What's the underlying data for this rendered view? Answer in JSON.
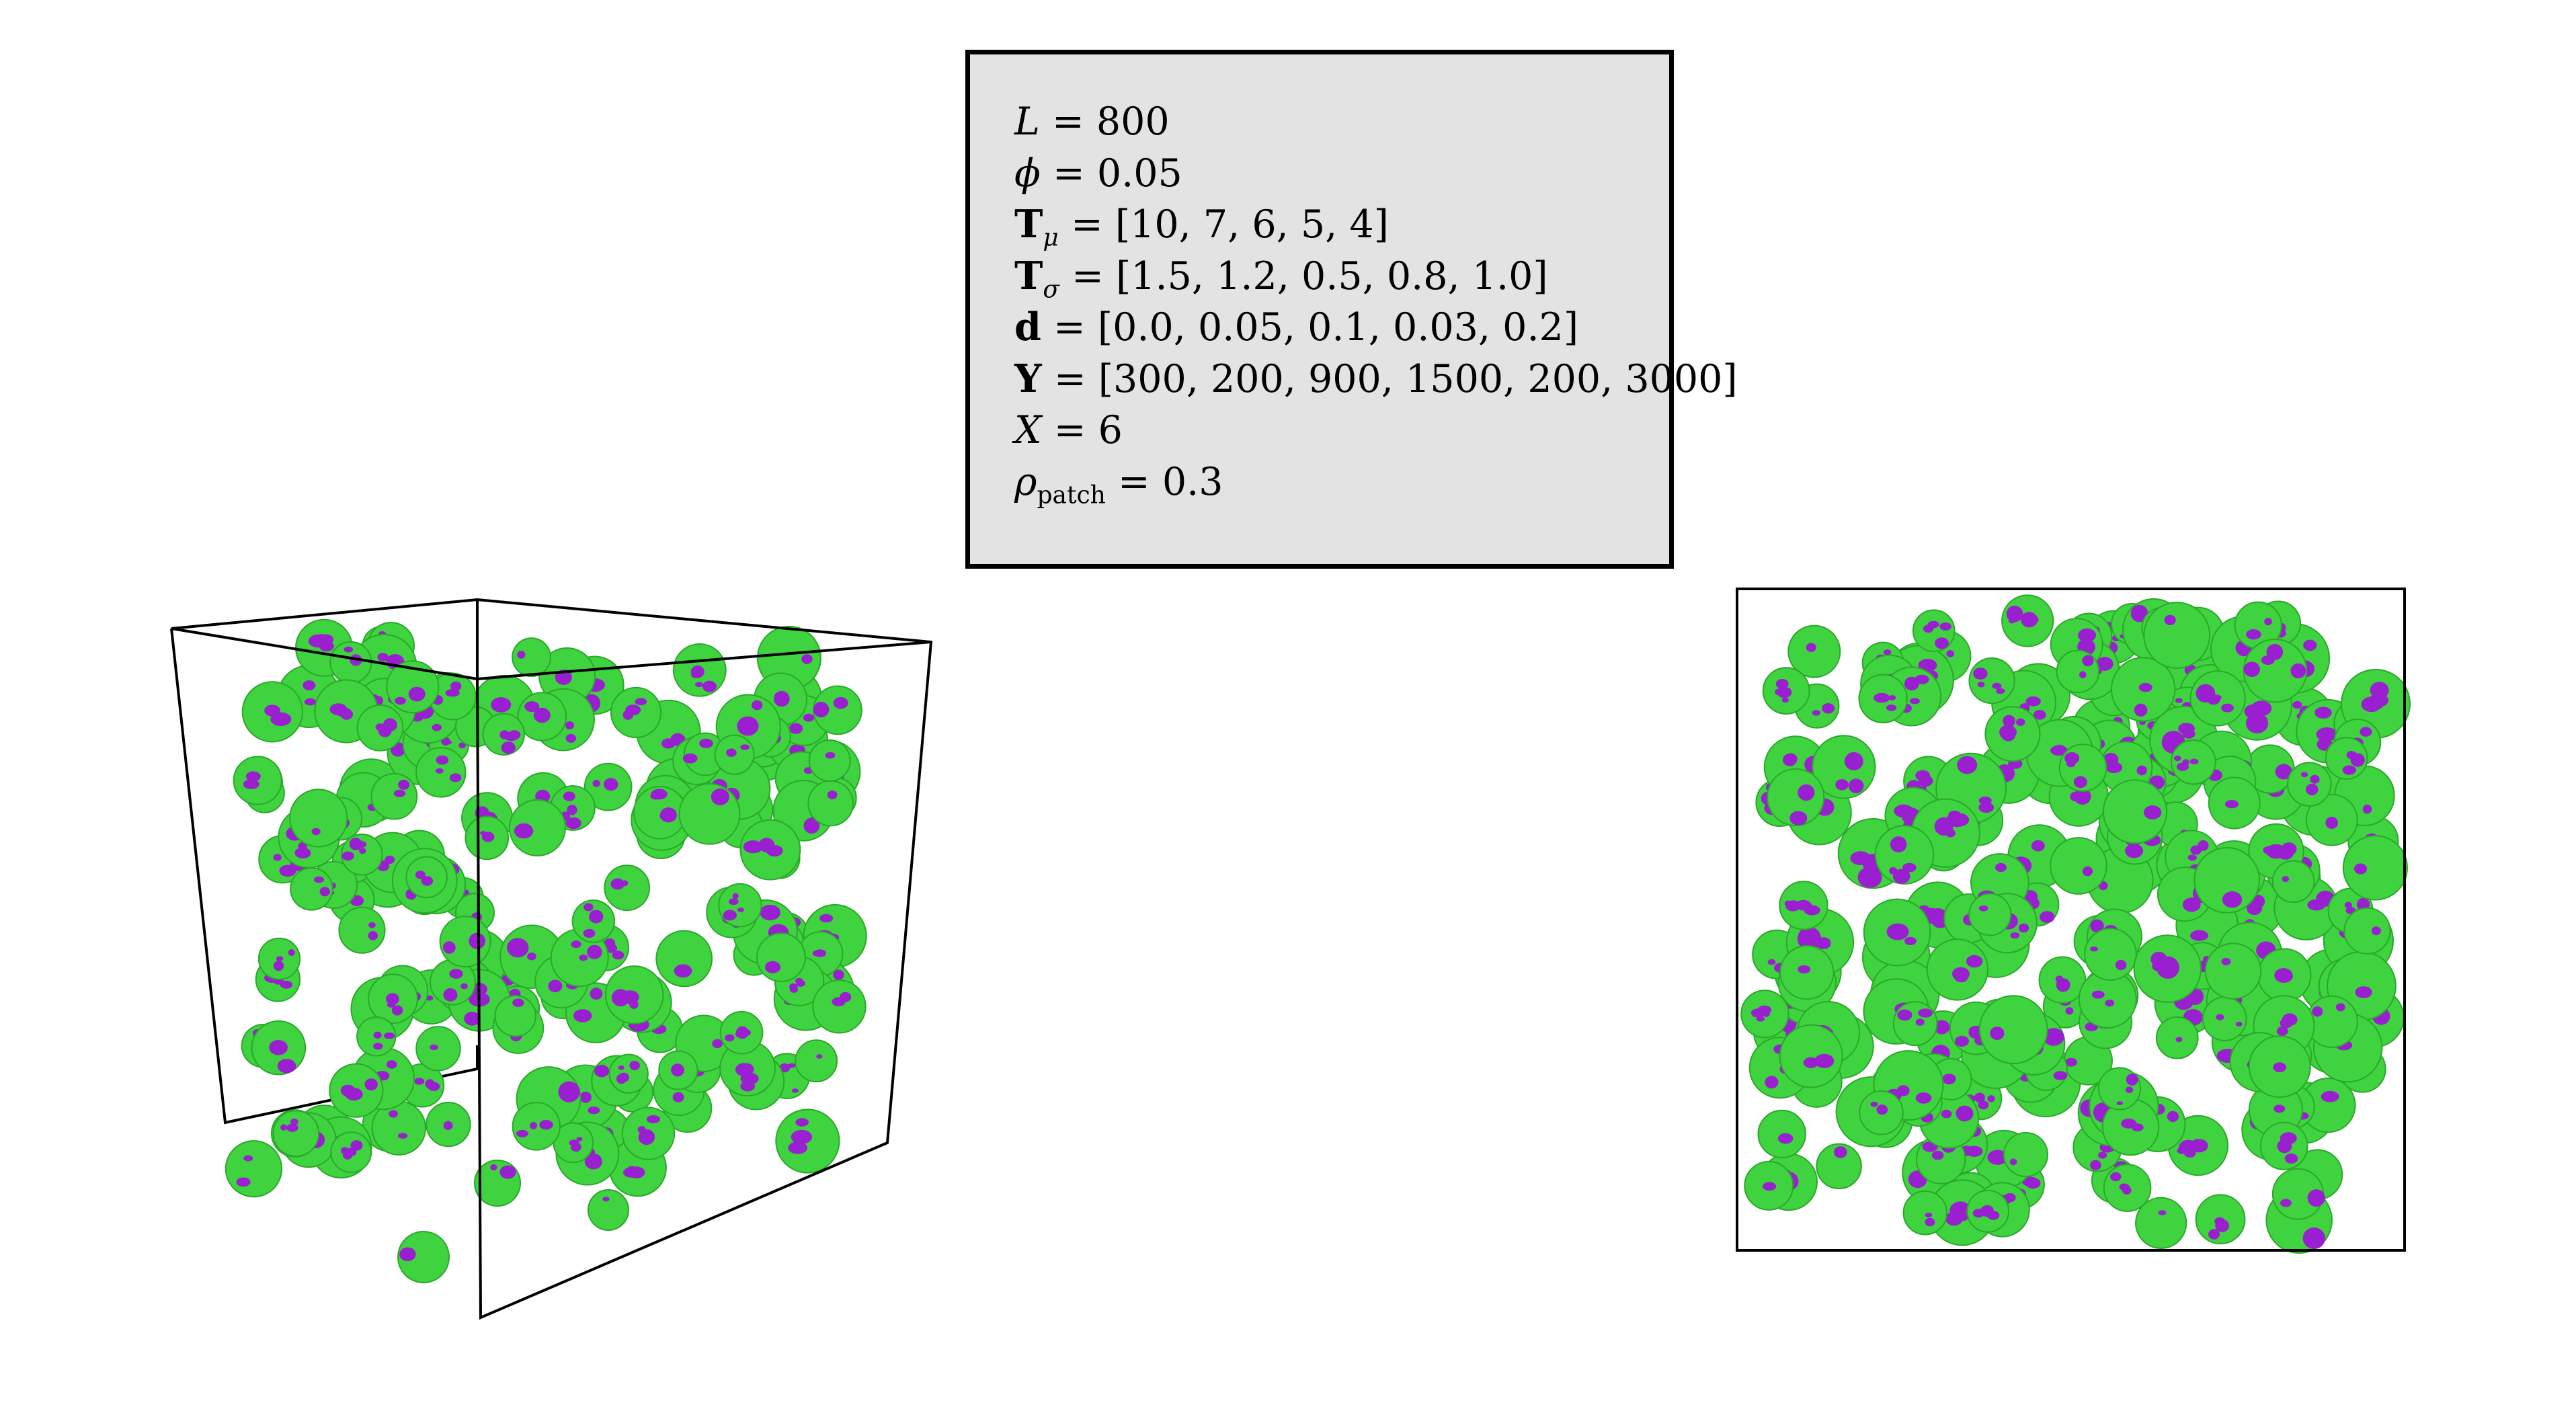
{
  "parameters": {
    "L": {
      "symbol": "L",
      "value": "800"
    },
    "phi": {
      "symbol": "ϕ",
      "value": "0.05"
    },
    "T_mu": {
      "symbol": "T",
      "subscript": "μ",
      "value": "[10, 7, 6, 5, 4]"
    },
    "T_sigma": {
      "symbol": "T",
      "subscript": "σ",
      "value": "[1.5, 1.2, 0.5, 0.8, 1.0]"
    },
    "d": {
      "symbol": "d",
      "value": "[0.0, 0.05, 0.1, 0.03, 0.2]"
    },
    "Y": {
      "symbol": "Y",
      "value": "[300, 200, 900, 1500, 200, 3000]"
    },
    "X": {
      "symbol": "X",
      "value": "6"
    },
    "rho_patch": {
      "symbol": "ρ",
      "subscript": "patch",
      "value": "0.3"
    }
  },
  "colors": {
    "particle": "#3fd33f",
    "particle_shade": "#2aa82a",
    "patch": "#9a1fd0",
    "box_fill": "#e3e3e3",
    "outline": "#000000"
  }
}
